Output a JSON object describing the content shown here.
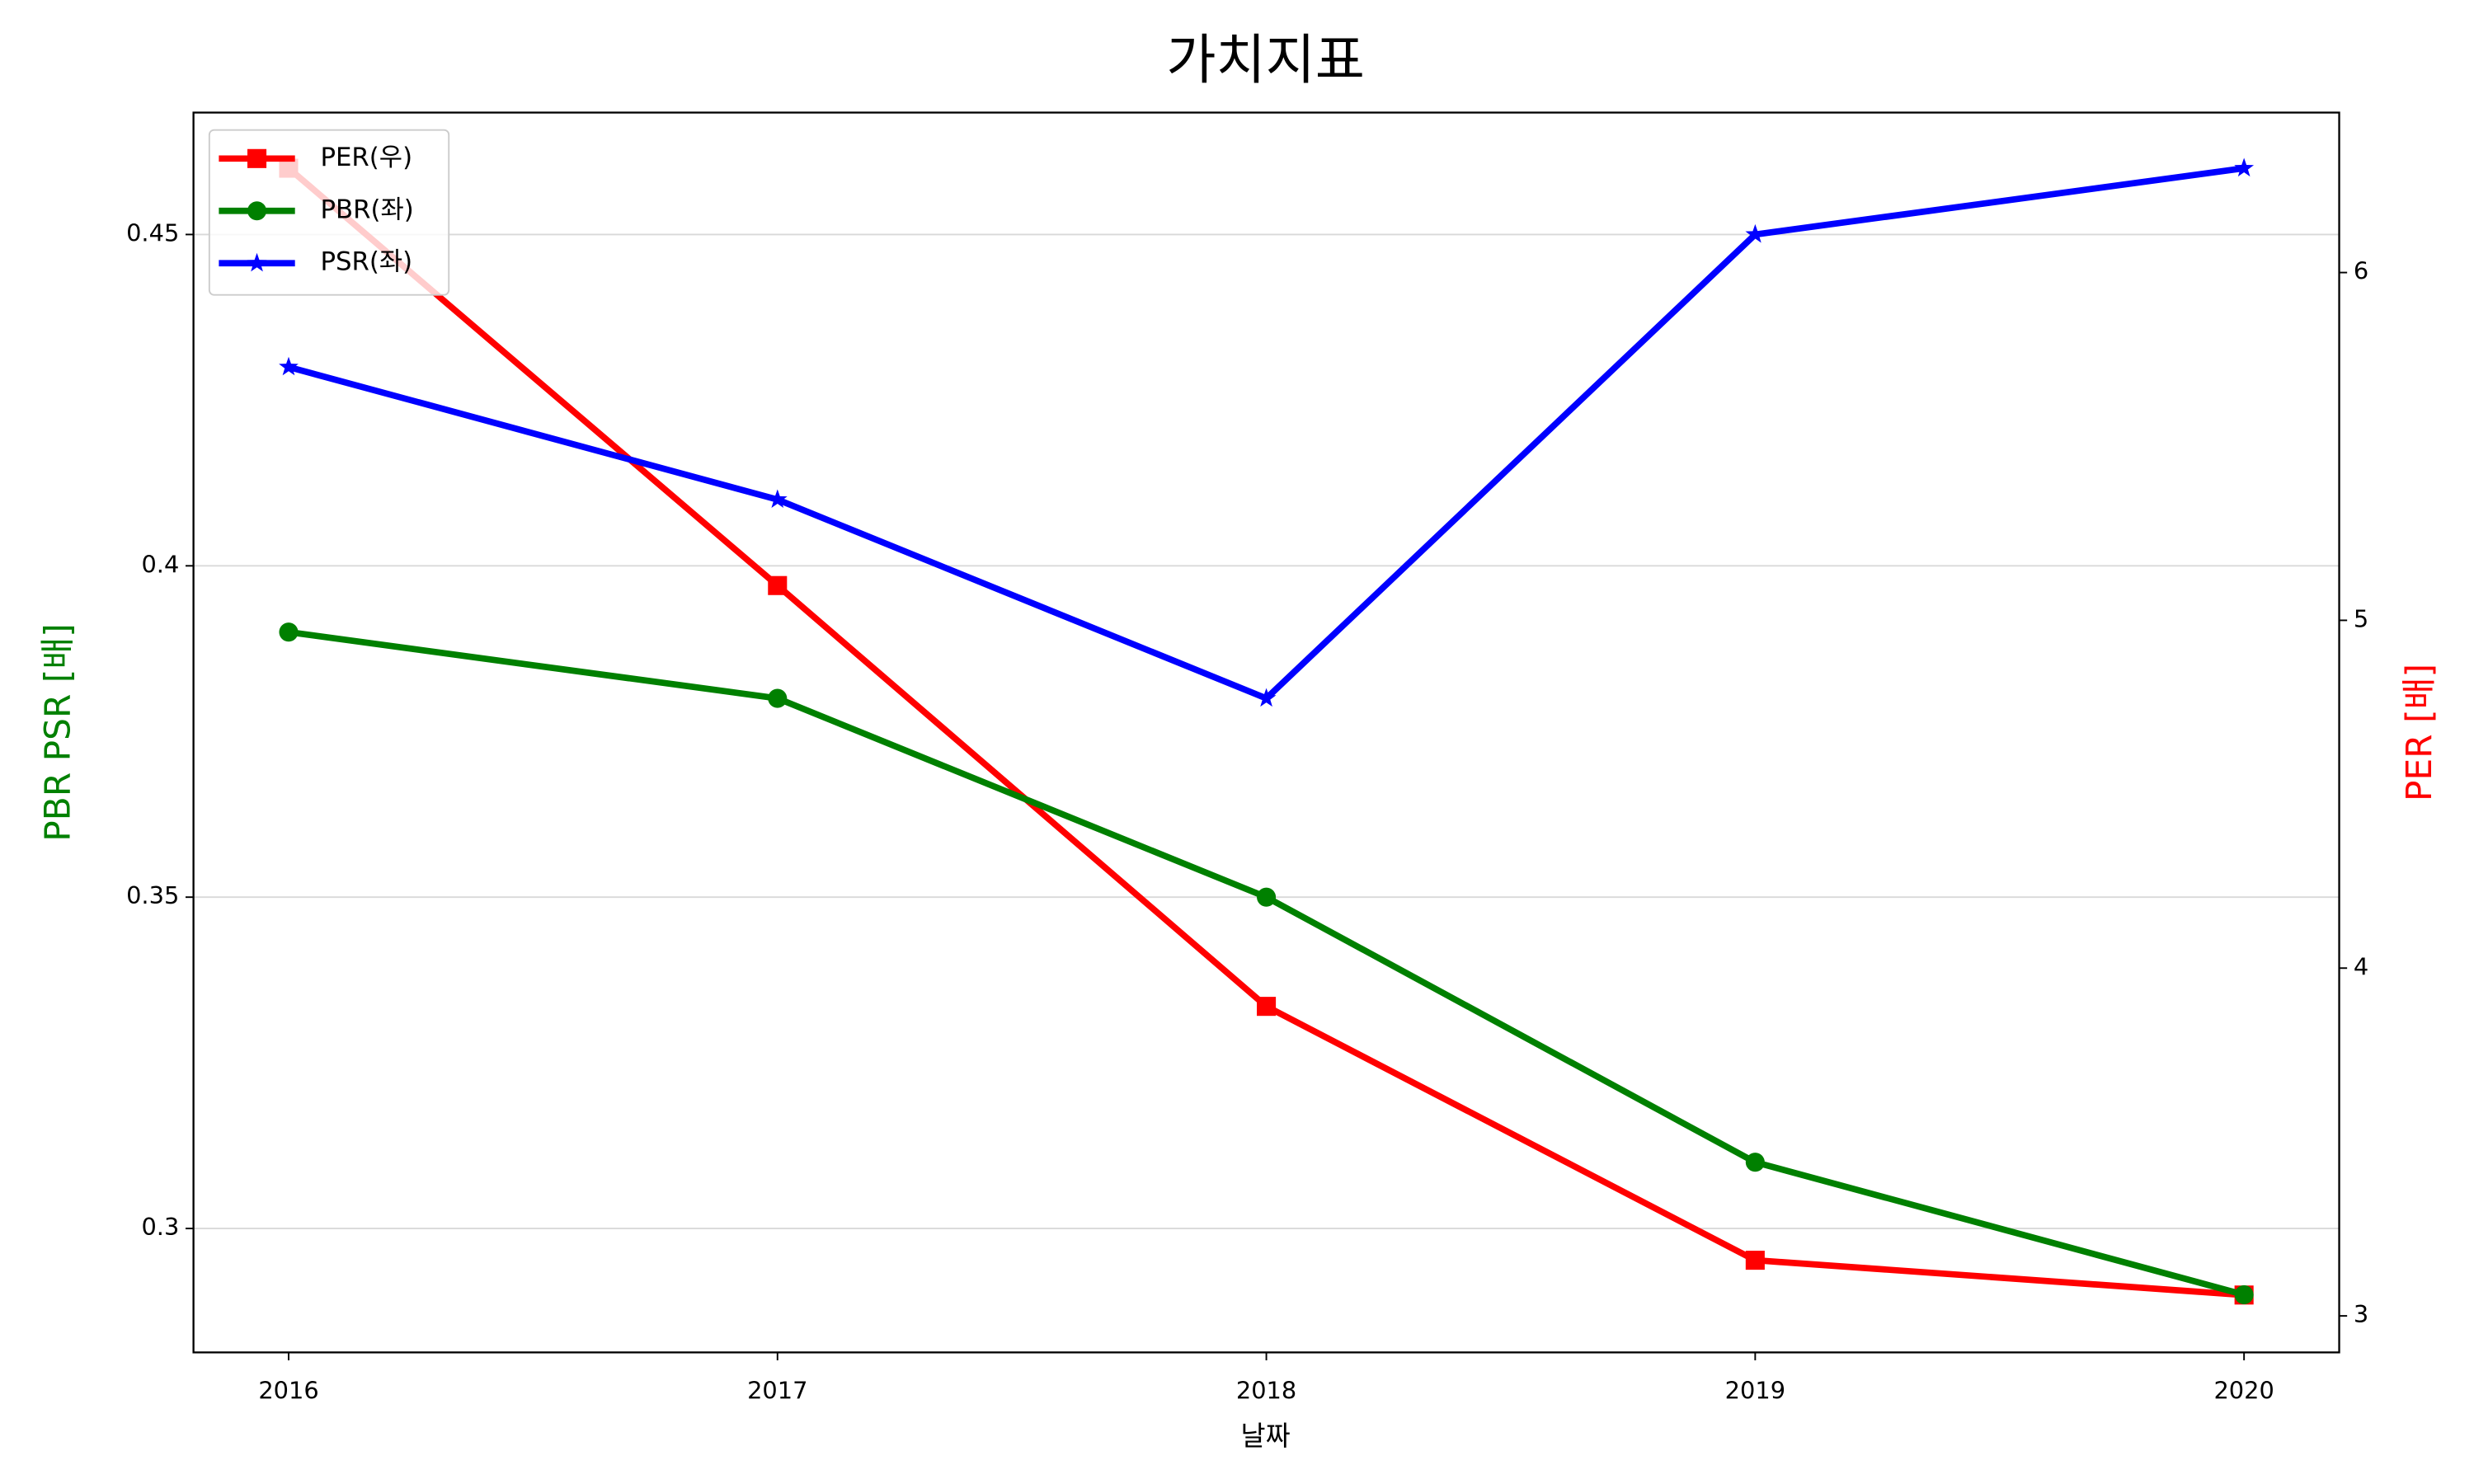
{
  "chart_data": {
    "type": "line",
    "title": "가치지표",
    "x_label": "날짜",
    "y_label": "PBR PSR [배]",
    "y2_label": "PER [배]",
    "categories": [
      "2016",
      "2017",
      "2018",
      "2019",
      "2020"
    ],
    "series": [
      {
        "name": "PER(우)",
        "color": "#ff0000",
        "marker": "square",
        "axis": "y2",
        "values": [
          6.3,
          5.1,
          3.89,
          3.16,
          3.06
        ]
      },
      {
        "name": "PBR(좌)",
        "color": "#008000",
        "marker": "circle",
        "values": [
          0.39,
          0.38,
          0.35,
          0.31,
          0.29
        ]
      },
      {
        "name": "PSR(좌)",
        "color": "#0000ff",
        "marker": "star",
        "values": [
          0.43,
          0.41,
          0.38,
          0.45,
          0.46
        ]
      }
    ],
    "ylim": [
      0.2813,
      0.4684
    ],
    "yticks": [
      0.3,
      0.35,
      0.4,
      0.45
    ],
    "y2lim": [
      2.895,
      6.46
    ],
    "y2ticks": [
      3,
      4,
      5,
      6
    ],
    "grid": true,
    "legend": "upper left"
  }
}
